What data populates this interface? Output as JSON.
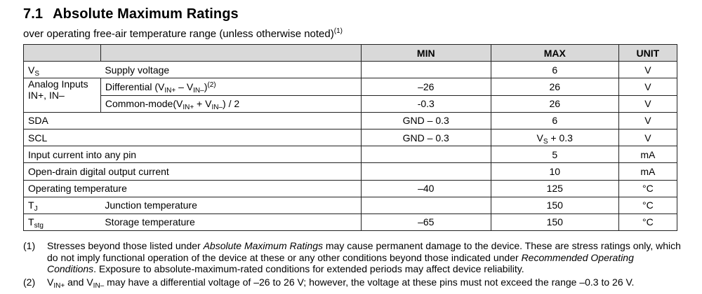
{
  "section": {
    "number": "7.1",
    "title": "Absolute Maximum Ratings"
  },
  "subtitle": {
    "text": "over operating free-air temperature range (unless otherwise noted)",
    "footnote": "(1)"
  },
  "table": {
    "headers": {
      "min": "MIN",
      "max": "MAX",
      "unit": "UNIT"
    },
    "rows": {
      "vs": {
        "sym": "V",
        "sym_sub": "S",
        "param": "Supply voltage",
        "min": "",
        "max": "6",
        "unit": "V"
      },
      "analog": {
        "label_line1": "Analog Inputs",
        "label_line2": "IN+, IN–",
        "diff": {
          "p1": "Differential (V",
          "s1": "IN+",
          "p2": " – V",
          "s2": "IN–",
          "p3": ")",
          "fn": "(2)",
          "min": "–26",
          "max": "26",
          "unit": "V"
        },
        "cm": {
          "p1": "Common-mode(V",
          "s1": "IN+",
          "p2": " + V",
          "s2": "IN–",
          "p3": ") / 2",
          "min": "-0.3",
          "max": "26",
          "unit": "V"
        }
      },
      "sda": {
        "label": "SDA",
        "min": "GND – 0.3",
        "max": "6",
        "unit": "V"
      },
      "scl": {
        "label": "SCL",
        "min": "GND – 0.3",
        "max_p1": "V",
        "max_sub": "S",
        "max_p2": " + 0.3",
        "unit": "V"
      },
      "input_current": {
        "label": "Input current into any pin",
        "min": "",
        "max": "5",
        "unit": "mA"
      },
      "od_current": {
        "label": "Open-drain digital output current",
        "min": "",
        "max": "10",
        "unit": "mA"
      },
      "op_temp": {
        "label": "Operating temperature",
        "min": "–40",
        "max": "125",
        "unit": "°C"
      },
      "tj": {
        "sym": "T",
        "sym_sub": "J",
        "param": "Junction temperature",
        "min": "",
        "max": "150",
        "unit": "°C"
      },
      "tstg": {
        "sym": "T",
        "sym_sub": "stg",
        "param": "Storage temperature",
        "min": "–65",
        "max": "150",
        "unit": "°C"
      }
    }
  },
  "notes": {
    "n1": {
      "marker": "(1)",
      "t1": "Stresses beyond those listed under ",
      "i1": "Absolute Maximum Ratings",
      "t2": " may cause permanent damage to the device. These are stress ratings only, which do not imply functional operation of the device at these or any other conditions beyond those indicated under ",
      "i2": "Recommended Operating Conditions",
      "t3": ". Exposure to absolute-maximum-rated conditions for extended periods may affect device reliability."
    },
    "n2": {
      "marker": "(2)",
      "p1": "V",
      "s1": "IN+",
      "p2": " and V",
      "s2": "IN–",
      "p3": " may have a differential voltage of –26 to 26 V; however, the voltage at these pins must not exceed the range –0.3 to 26 V."
    }
  }
}
